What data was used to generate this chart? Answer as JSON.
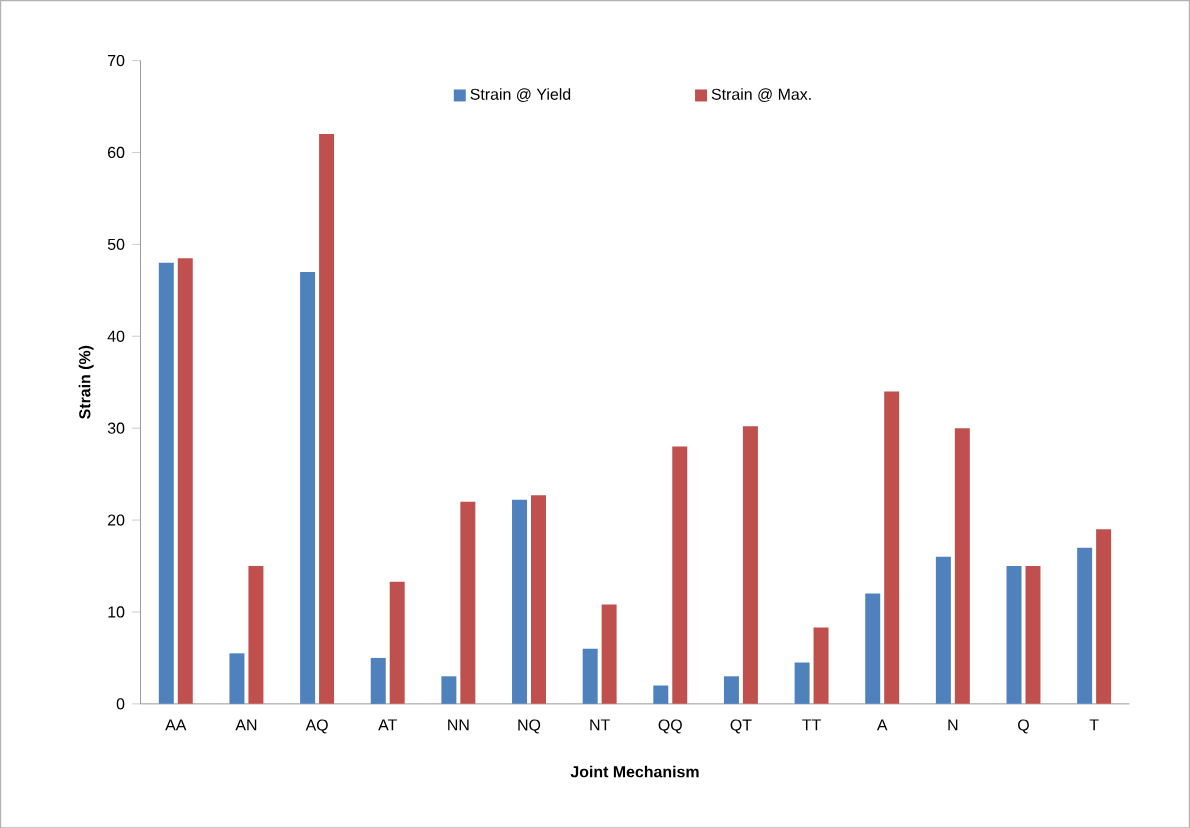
{
  "chart_data": {
    "type": "bar",
    "xlabel": "Joint Mechanism",
    "ylabel": "Strain (%)",
    "categories": [
      "AA",
      "AN",
      "AQ",
      "AT",
      "NN",
      "NQ",
      "NT",
      "QQ",
      "QT",
      "TT",
      "A",
      "N",
      "Q",
      "T"
    ],
    "series": [
      {
        "name": "Strain @ Yield",
        "color": "#4f81bd",
        "values": [
          48,
          5.5,
          47,
          5,
          3,
          22.2,
          6,
          2,
          3,
          4.5,
          12,
          16,
          15,
          17
        ]
      },
      {
        "name": "Strain @ Max.",
        "color": "#c0504d",
        "values": [
          48.5,
          15,
          62,
          13.3,
          22,
          22.7,
          10.8,
          28,
          30.2,
          8.3,
          34,
          30,
          15,
          19
        ]
      }
    ],
    "ylim": [
      0,
      70
    ],
    "yticks": [
      0,
      10,
      20,
      30,
      40,
      50,
      60,
      70
    ],
    "grid": false,
    "legend": "top"
  }
}
